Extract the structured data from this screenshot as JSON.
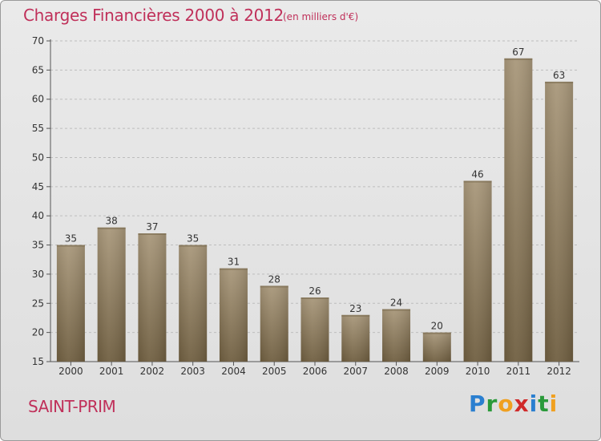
{
  "header": {
    "title": "Charges Financières 2000 à 2012",
    "subtitle": "(en milliers d'€)"
  },
  "footer": {
    "town": "SAINT-PRIM",
    "logo_letters": [
      {
        "ch": "P",
        "color": "#2a7fd0"
      },
      {
        "ch": "r",
        "color": "#2a9a3a"
      },
      {
        "ch": "o",
        "color": "#f0a020"
      },
      {
        "ch": "x",
        "color": "#d02a2a"
      },
      {
        "ch": "i",
        "color": "#2a7fd0"
      },
      {
        "ch": "t",
        "color": "#2a9a3a"
      },
      {
        "ch": "i",
        "color": "#f0a020"
      }
    ]
  },
  "colors": {
    "bar_top": "#a8977a",
    "bar_bottom": "#6f5e40",
    "grid": "#bdbdbd",
    "accent": "#c0305a"
  },
  "chart_data": {
    "type": "bar",
    "title": "Charges Financières 2000 à 2012",
    "subtitle": "(en milliers d'€)",
    "categories": [
      "2000",
      "2001",
      "2002",
      "2003",
      "2004",
      "2005",
      "2006",
      "2007",
      "2008",
      "2009",
      "2010",
      "2011",
      "2012"
    ],
    "values": [
      35,
      38,
      37,
      35,
      31,
      28,
      26,
      23,
      24,
      20,
      46,
      67,
      63
    ],
    "ylim": [
      15,
      70
    ],
    "yticks": [
      15,
      20,
      25,
      30,
      35,
      40,
      45,
      50,
      55,
      60,
      65,
      70
    ],
    "grid": true,
    "data_labels": true,
    "xlabel": "",
    "ylabel": ""
  }
}
